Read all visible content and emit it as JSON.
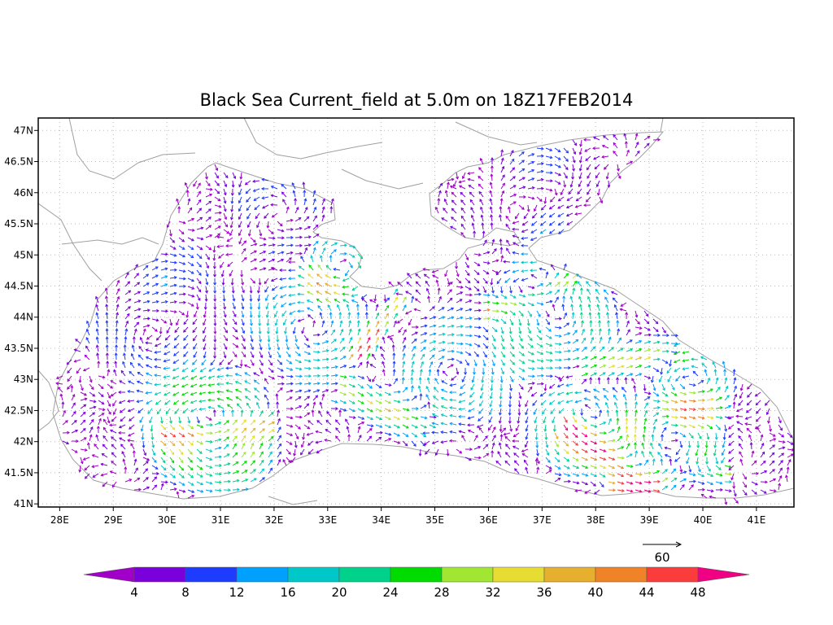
{
  "title": "Black Sea Current_field at 5.0m on 18Z17FEB2014",
  "map": {
    "lon_range": [
      27.6,
      41.7
    ],
    "lat_range": [
      40.95,
      47.2
    ],
    "lon_ticks": [
      "28E",
      "29E",
      "30E",
      "31E",
      "32E",
      "33E",
      "34E",
      "35E",
      "36E",
      "37E",
      "38E",
      "39E",
      "40E",
      "41E"
    ],
    "lat_ticks": [
      "41N",
      "41.5N",
      "42N",
      "42.5N",
      "43N",
      "43.5N",
      "44N",
      "44.5N",
      "45N",
      "45.5N",
      "46N",
      "46.5N",
      "47N"
    ],
    "gridlines": "dotted",
    "coastline_color": "#9a9a9a",
    "vector_field": "current velocity arrows colored by speed"
  },
  "reference_vector": {
    "label": "60"
  },
  "colorbar": {
    "labels": [
      "4",
      "8",
      "12",
      "16",
      "20",
      "24",
      "28",
      "32",
      "36",
      "40",
      "44",
      "48"
    ],
    "colors": [
      "#a000c8",
      "#7a00dc",
      "#1e3cff",
      "#00a0ff",
      "#00c8c8",
      "#00d28c",
      "#00dc00",
      "#a0e632",
      "#e6dc32",
      "#e6af2d",
      "#f08228",
      "#fa3c3c",
      "#f00082"
    ]
  }
}
